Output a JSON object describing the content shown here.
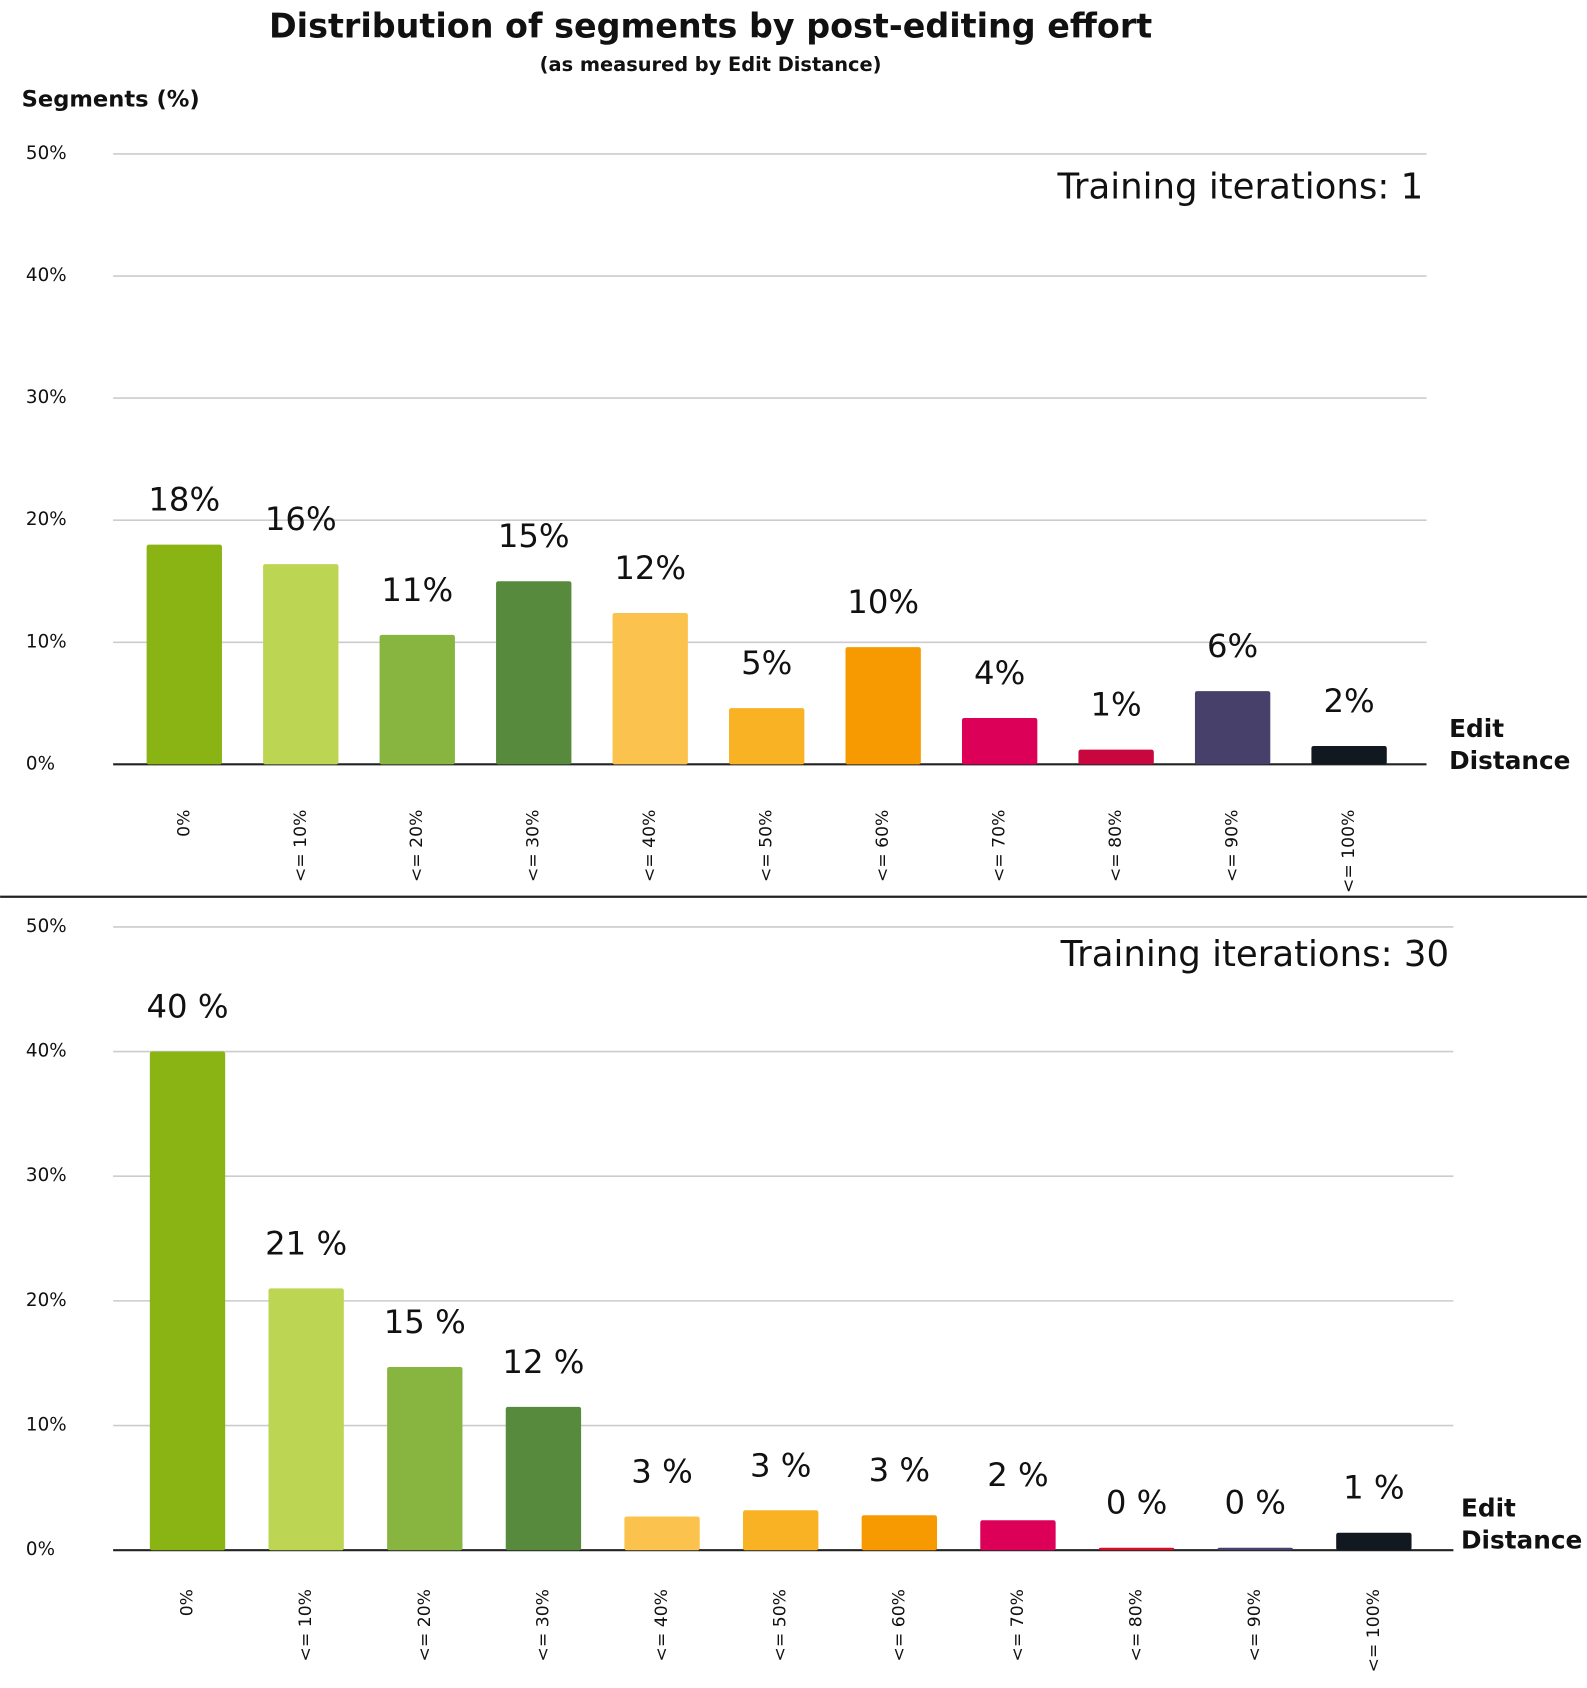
{
  "chart_data": [
    {
      "type": "bar",
      "title": "Distribution of segments by post-editing effort",
      "subtitle": "(as measured by Edit Distance)",
      "ylabel": "Segments (%)",
      "xlabel": "Edit Distance",
      "annotation": "Training iterations: 1",
      "categories": [
        "0%",
        "<= 10%",
        "<= 20%",
        "<= 30%",
        "<= 40%",
        "<= 50%",
        "<= 60%",
        "<= 70%",
        "<= 80%",
        "<= 90%",
        "<= 100%"
      ],
      "values": [
        18,
        16.4,
        10.6,
        15,
        12.4,
        4.6,
        9.6,
        3.8,
        1.2,
        6,
        1.5
      ],
      "value_labels": [
        "18%",
        "16%",
        "11%",
        "15%",
        "12%",
        "5%",
        "10%",
        "4%",
        "1%",
        "6%",
        "2%"
      ],
      "colors": [
        "#8ab414",
        "#bcd654",
        "#88b440",
        "#588a3e",
        "#fbc34e",
        "#f9b224",
        "#f79900",
        "#dc0059",
        "#c8073f",
        "#46406a",
        "#111820"
      ],
      "ylim": [
        0,
        50
      ],
      "yticks": [
        {
          "value": 0,
          "label": "0%"
        },
        {
          "value": 10,
          "label": "10%"
        },
        {
          "value": 20,
          "label": "20%"
        },
        {
          "value": 30,
          "label": "30%"
        },
        {
          "value": 40,
          "label": "40%"
        },
        {
          "value": 50,
          "label": "50%"
        }
      ],
      "grid": true
    },
    {
      "type": "bar",
      "xlabel": "Edit Distance",
      "annotation": "Training iterations: 30",
      "categories": [
        "0%",
        "<= 10%",
        "<= 20%",
        "<= 30%",
        "<= 40%",
        "<= 50%",
        "<= 60%",
        "<= 70%",
        "<= 80%",
        "<= 90%",
        "<= 100%"
      ],
      "values": [
        40,
        21,
        14.7,
        11.5,
        2.7,
        3.2,
        2.8,
        2.4,
        0.2,
        0.2,
        1.4
      ],
      "value_labels": [
        "40 %",
        "21 %",
        "15 %",
        "12 %",
        "3 %",
        "3 %",
        "3 %",
        "2 %",
        "0 %",
        "0 %",
        "1 %"
      ],
      "colors": [
        "#8ab414",
        "#bcd654",
        "#88b440",
        "#588a3e",
        "#fbc34e",
        "#f9b224",
        "#f79900",
        "#dc0059",
        "#d0102a",
        "#46406a",
        "#111820"
      ],
      "ylim": [
        0,
        50
      ],
      "yticks": [
        {
          "value": 0,
          "label": "0%"
        },
        {
          "value": 10,
          "label": "10%"
        },
        {
          "value": 20,
          "label": "20%"
        },
        {
          "value": 30,
          "label": "30%"
        },
        {
          "value": 40,
          "label": "40%"
        },
        {
          "value": 50,
          "label": "50%"
        }
      ],
      "grid": true
    }
  ]
}
